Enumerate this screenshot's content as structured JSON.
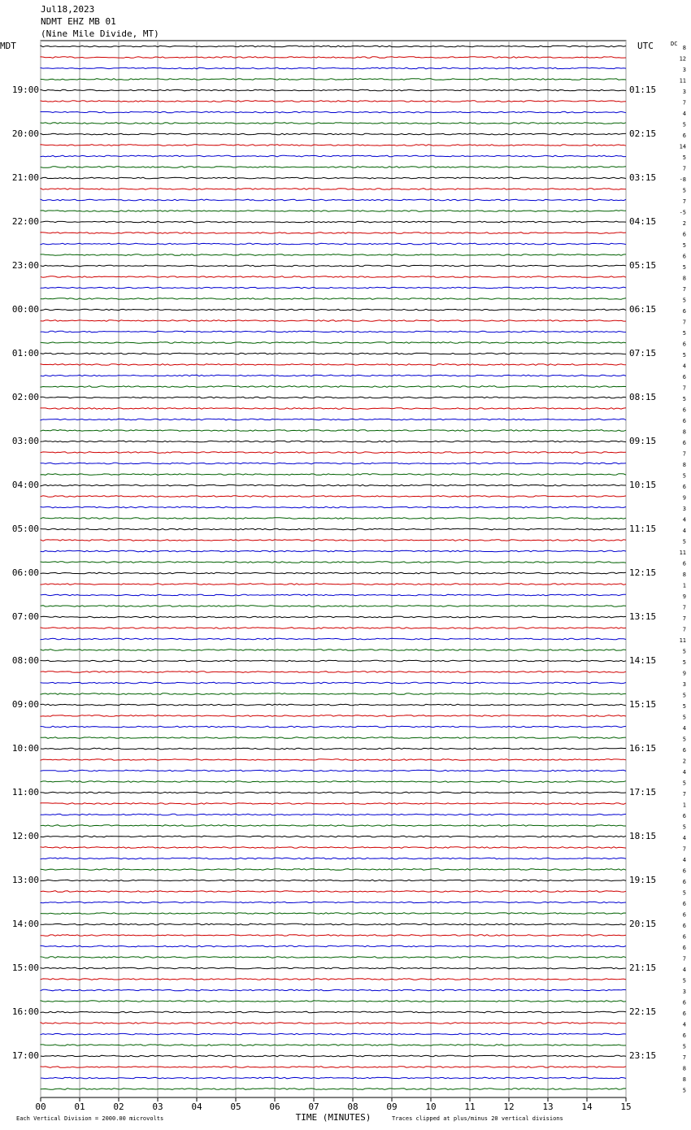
{
  "chart_data": {
    "type": "seismogram",
    "title": [
      "Jul18,2023",
      "NDMT EHZ MB 01",
      "(Nine Mile Divide, MT)"
    ],
    "left_zone": "MDT",
    "right_zone": "UTC",
    "dc_label": "DC",
    "left_labels": [
      "19:00",
      "20:00",
      "21:00",
      "22:00",
      "23:00",
      "00:00",
      "01:00",
      "02:00",
      "03:00",
      "04:00",
      "05:00",
      "06:00",
      "07:00",
      "08:00",
      "09:00",
      "10:00",
      "11:00",
      "12:00",
      "13:00",
      "14:00",
      "15:00",
      "16:00",
      "17:00"
    ],
    "right_labels": [
      "01:15",
      "02:15",
      "03:15",
      "04:15",
      "05:15",
      "06:15",
      "07:15",
      "08:15",
      "09:15",
      "10:15",
      "11:15",
      "12:15",
      "13:15",
      "14:15",
      "15:15",
      "16:15",
      "17:15",
      "18:15",
      "19:15",
      "20:15",
      "21:15",
      "22:15",
      "23:15"
    ],
    "dc_values": [
      8,
      12,
      3,
      11,
      3,
      7,
      4,
      5,
      6,
      14,
      5,
      7,
      -8,
      5,
      7,
      -5,
      2,
      6,
      5,
      6,
      5,
      8,
      7,
      5,
      6,
      7,
      5,
      6,
      5,
      4,
      6,
      7,
      5,
      6,
      6,
      8,
      6,
      7,
      8,
      5,
      6,
      9,
      3,
      4,
      4,
      5,
      11,
      6,
      8,
      1,
      9,
      7,
      7,
      7,
      11,
      5,
      5,
      9,
      3,
      5,
      5,
      5,
      4,
      5,
      6,
      2,
      4,
      5,
      7,
      1,
      6,
      5,
      4,
      7,
      4,
      6,
      6,
      5,
      6,
      6,
      6,
      6,
      6,
      7,
      4,
      5,
      3,
      6,
      6,
      4,
      6,
      5,
      7,
      8,
      8,
      5
    ],
    "xlim": [
      0,
      15
    ],
    "xticks": [
      {
        "value": 0,
        "label": "00"
      },
      {
        "value": 1,
        "label": "01"
      },
      {
        "value": 2,
        "label": "02"
      },
      {
        "value": 3,
        "label": "03"
      },
      {
        "value": 4,
        "label": "04"
      },
      {
        "value": 5,
        "label": "05"
      },
      {
        "value": 6,
        "label": "06"
      },
      {
        "value": 7,
        "label": "07"
      },
      {
        "value": 8,
        "label": "08"
      },
      {
        "value": 9,
        "label": "09"
      },
      {
        "value": 10,
        "label": "10"
      },
      {
        "value": 11,
        "label": "11"
      },
      {
        "value": 12,
        "label": "12"
      },
      {
        "value": 13,
        "label": "13"
      },
      {
        "value": 14,
        "label": "14"
      },
      {
        "value": 15,
        "label": "15"
      }
    ],
    "xlabel": "TIME (MINUTES)",
    "footer_left": "Each Vertical Division = 2000.00 microvolts",
    "footer_right": "Traces clipped at plus/minus 20 vertical divisions",
    "trace_colors": [
      "#000000",
      "#d00000",
      "#0000d0",
      "#006000"
    ]
  }
}
